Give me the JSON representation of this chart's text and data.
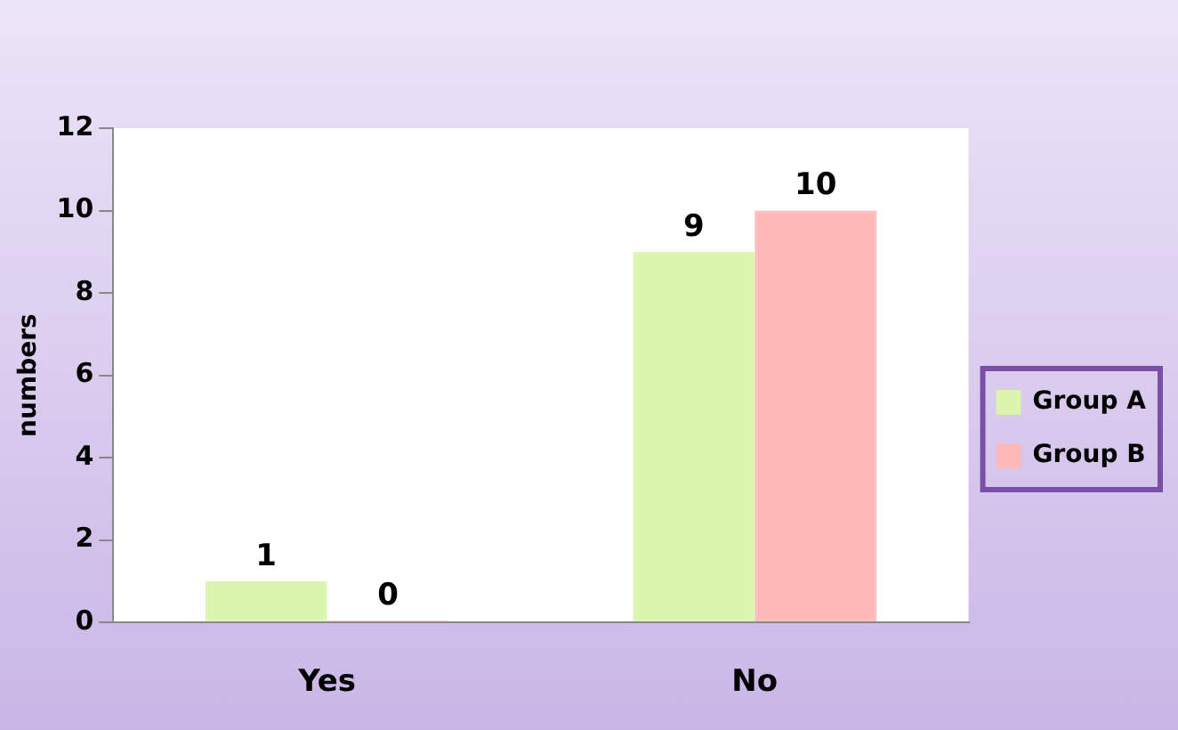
{
  "chart_data": {
    "type": "bar",
    "ylabel": "numbers",
    "categories": [
      "Yes",
      "No"
    ],
    "series": [
      {
        "name": "Group A",
        "color": "#d9f5ae",
        "values": [
          1,
          9
        ]
      },
      {
        "name": "Group B",
        "color": "#ffb8b8",
        "values": [
          0,
          10
        ]
      }
    ],
    "ylim": [
      0,
      12
    ],
    "yticks": [
      0,
      2,
      4,
      6,
      8,
      10,
      12
    ],
    "grid": false,
    "legend": "right",
    "data_labels": true
  }
}
